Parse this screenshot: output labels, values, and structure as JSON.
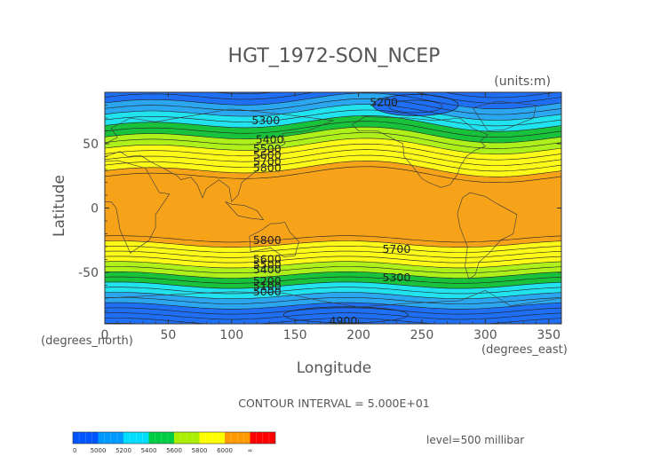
{
  "chart_data": {
    "type": "contour",
    "title": "HGT_1972-SON_NCEP",
    "units_label": "(units:m)",
    "xlabel": "Longitude",
    "ylabel": "Latitude",
    "x_unit_label": "(degrees_east)",
    "y_unit_label": "(degrees_north)",
    "xlim": [
      0,
      360
    ],
    "ylim": [
      -90,
      90
    ],
    "x_ticks": [
      "0",
      "50",
      "100",
      "150",
      "200",
      "250",
      "300",
      "350"
    ],
    "y_ticks": [
      "50",
      "0",
      "-50"
    ],
    "contour_interval_text": "CONTOUR INTERVAL = 5.000E+01",
    "level_text": "level=500 millibar",
    "contour_labels": [
      {
        "value": "5200",
        "lon": 220,
        "lat": 82
      },
      {
        "value": "5300",
        "lon": 127,
        "lat": 68
      },
      {
        "value": "5400",
        "lon": 130,
        "lat": 53
      },
      {
        "value": "5500",
        "lon": 128,
        "lat": 46
      },
      {
        "value": "5600",
        "lon": 128,
        "lat": 41
      },
      {
        "value": "5700",
        "lon": 128,
        "lat": 36
      },
      {
        "value": "5800",
        "lon": 128,
        "lat": 31
      },
      {
        "value": "5800",
        "lon": 128,
        "lat": -25
      },
      {
        "value": "5700",
        "lon": 230,
        "lat": -32
      },
      {
        "value": "5600",
        "lon": 128,
        "lat": -40
      },
      {
        "value": "5500",
        "lon": 128,
        "lat": -44
      },
      {
        "value": "5400",
        "lon": 128,
        "lat": -48
      },
      {
        "value": "5300",
        "lon": 230,
        "lat": -54
      },
      {
        "value": "5200",
        "lon": 128,
        "lat": -57
      },
      {
        "value": "5100",
        "lon": 128,
        "lat": -61
      },
      {
        "value": "5000",
        "lon": 128,
        "lat": -65
      },
      {
        "value": "4900",
        "lon": 188,
        "lat": -88
      }
    ],
    "colorbar": {
      "labels": [
        "0",
        "5000",
        "5200",
        "5400",
        "5600",
        "5800",
        "6000",
        "∞"
      ],
      "colors": [
        "#0055ff",
        "#0099ff",
        "#00ddff",
        "#00cc44",
        "#aaee00",
        "#ffff00",
        "#ff9900",
        "#ff0000"
      ]
    },
    "bands": [
      {
        "range": [
          4900,
          5200
        ],
        "color": "#1f6ff5"
      },
      {
        "range": [
          5200,
          5300
        ],
        "color": "#2aa7f0"
      },
      {
        "range": [
          5300,
          5400
        ],
        "color": "#21e3ef"
      },
      {
        "range": [
          5400,
          5500
        ],
        "color": "#18c23a"
      },
      {
        "range": [
          5500,
          5600
        ],
        "color": "#aef01a"
      },
      {
        "range": [
          5600,
          5800
        ],
        "color": "#fdfa18"
      },
      {
        "range": [
          5800,
          5900
        ],
        "color": "#f6a31a"
      }
    ]
  }
}
